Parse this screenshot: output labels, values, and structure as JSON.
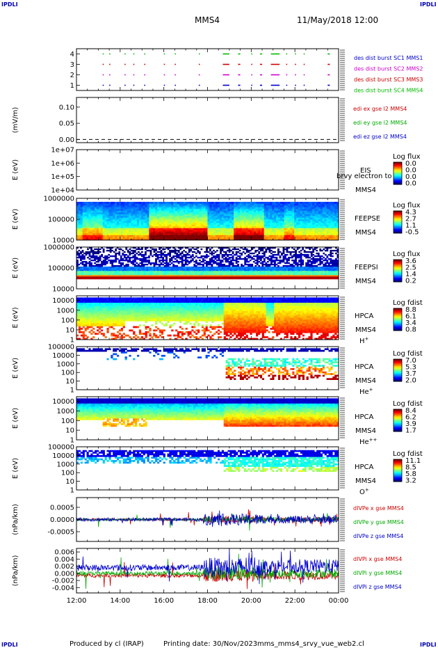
{
  "header": {
    "corner_labels": [
      "IPDLI",
      "IPDLI",
      "IPDLI",
      "IPDLI"
    ],
    "spacecraft": "MMS4",
    "datetime": "11/May/2018 12:00"
  },
  "footer": {
    "produced_by": "Produced by cl (IRAP)",
    "printing_date": "Printing date: 30/Nov/2023",
    "filename": "mms_mms4_srvy_vue_web2.cl"
  },
  "time_axis": {
    "labels": [
      "12:00",
      "14:00",
      "16:00",
      "18:00",
      "20:00",
      "22:00",
      "00:00"
    ],
    "start_hour": 12,
    "end_hour": 24
  },
  "chart_data": [
    {
      "id": "burst",
      "type": "scatter",
      "yticks": [
        "4",
        "3",
        "2",
        "1"
      ],
      "ylim": [
        0.5,
        4.5
      ],
      "legend": [
        {
          "text": "des dist burst SC1 MMS1",
          "color": "#0000cc"
        },
        {
          "text": "des dist burst SC2 MMS2",
          "color": "#cc00cc"
        },
        {
          "text": "des dist burst SC3 MMS3",
          "color": "#cc0000"
        },
        {
          "text": "des dist burst SC4 MMS4",
          "color": "#00bb00"
        }
      ],
      "series": [
        {
          "sc": 4,
          "color": "#00bb00",
          "intervals": [
            [
              13.2,
              13.25
            ],
            [
              13.5,
              13.55
            ],
            [
              14.2,
              14.25
            ],
            [
              14.6,
              14.65
            ],
            [
              15.1,
              15.15
            ],
            [
              16.0,
              16.05
            ],
            [
              16.5,
              16.55
            ],
            [
              17.6,
              17.65
            ],
            [
              18.7,
              19.0
            ],
            [
              19.4,
              19.5
            ],
            [
              20.0,
              20.05
            ],
            [
              20.4,
              20.5
            ],
            [
              20.9,
              21.3
            ],
            [
              21.6,
              21.65
            ],
            [
              22.0,
              22.05
            ],
            [
              22.4,
              22.45
            ],
            [
              23.5,
              23.6
            ]
          ]
        },
        {
          "sc": 3,
          "color": "#cc0000",
          "intervals": [
            [
              13.2,
              13.25
            ],
            [
              13.5,
              13.55
            ],
            [
              14.2,
              14.25
            ],
            [
              14.6,
              14.65
            ],
            [
              15.1,
              15.15
            ],
            [
              16.0,
              16.05
            ],
            [
              16.5,
              16.55
            ],
            [
              17.6,
              17.65
            ],
            [
              18.7,
              19.0
            ],
            [
              19.4,
              19.5
            ],
            [
              20.0,
              20.05
            ],
            [
              20.4,
              20.5
            ],
            [
              20.9,
              21.3
            ],
            [
              21.6,
              21.65
            ],
            [
              22.0,
              22.05
            ],
            [
              22.4,
              22.45
            ],
            [
              23.5,
              23.6
            ]
          ]
        },
        {
          "sc": 2,
          "color": "#cc00cc",
          "intervals": [
            [
              13.2,
              13.25
            ],
            [
              13.5,
              13.55
            ],
            [
              14.2,
              14.25
            ],
            [
              14.6,
              14.65
            ],
            [
              15.1,
              15.15
            ],
            [
              16.0,
              16.05
            ],
            [
              16.5,
              16.55
            ],
            [
              17.6,
              17.65
            ],
            [
              18.7,
              19.0
            ],
            [
              19.4,
              19.5
            ],
            [
              20.0,
              20.05
            ],
            [
              20.4,
              20.5
            ],
            [
              20.9,
              21.3
            ],
            [
              21.6,
              21.65
            ],
            [
              22.0,
              22.05
            ],
            [
              22.4,
              22.45
            ],
            [
              23.5,
              23.6
            ]
          ]
        },
        {
          "sc": 1,
          "color": "#0000cc",
          "intervals": [
            [
              13.2,
              13.25
            ],
            [
              13.5,
              13.55
            ],
            [
              14.2,
              14.25
            ],
            [
              14.6,
              14.65
            ],
            [
              15.1,
              15.15
            ],
            [
              16.0,
              16.05
            ],
            [
              16.5,
              16.55
            ],
            [
              17.6,
              17.65
            ],
            [
              18.7,
              19.0
            ],
            [
              19.4,
              19.5
            ],
            [
              20.0,
              20.05
            ],
            [
              20.4,
              20.5
            ],
            [
              20.9,
              21.3
            ],
            [
              21.6,
              21.65
            ],
            [
              22.0,
              22.05
            ],
            [
              22.4,
              22.45
            ],
            [
              23.5,
              23.6
            ]
          ]
        }
      ]
    },
    {
      "id": "edi",
      "type": "line",
      "ylabel": "(mV/m)",
      "yticks": [
        "0.10",
        "0.05",
        "0.00"
      ],
      "ytick_values": [
        0.1,
        0.05,
        0.0
      ],
      "ylim": [
        -0.01,
        0.13
      ],
      "legend": [
        {
          "text": "edi ex gse l2 MMS4",
          "color": "#cc0000"
        },
        {
          "text": "edi ey gse l2 MMS4",
          "color": "#00aa00"
        },
        {
          "text": "edi ez gse l2 MMS4",
          "color": "#0000cc"
        }
      ],
      "zero_line": 0.0
    },
    {
      "id": "eis",
      "type": "heatmap",
      "ylabel": "E (eV)",
      "yticks": [
        "1e+07",
        "1e+06",
        "1e+05",
        "1e+04"
      ],
      "ylim": [
        10000,
        10000000
      ],
      "log": true,
      "instrument": "EIS",
      "sc": "MMS4",
      "overlay_text": "brvy electron to",
      "colorbar": {
        "title": "Log flux",
        "labels": [
          "0.0",
          "0.0",
          "0.0",
          "0.0"
        ]
      },
      "empty": true
    },
    {
      "id": "feepse",
      "type": "heatmap",
      "ylabel": "E (eV)",
      "yticks": [
        "1000000",
        "100000",
        "10000"
      ],
      "ylim": [
        10000,
        1000000
      ],
      "log": true,
      "instrument": "FEEPSE",
      "sc": "MMS4",
      "colorbar": {
        "title": "Log flux",
        "labels": [
          "4.3",
          "2.7",
          "1.1",
          "-0.5"
        ]
      }
    },
    {
      "id": "feepsi",
      "type": "heatmap",
      "ylabel": "E (eV)",
      "yticks": [
        "1000000",
        "100000",
        "10000"
      ],
      "ylim": [
        10000,
        1000000
      ],
      "log": true,
      "instrument": "FEEPSI",
      "sc": "MMS4",
      "colorbar": {
        "title": "Log flux",
        "labels": [
          "3.6",
          "2.5",
          "1.4",
          "0.2"
        ]
      }
    },
    {
      "id": "hpca_h",
      "type": "heatmap",
      "ylabel": "E (eV)",
      "yticks": [
        "10000",
        "1000",
        "100",
        "10",
        "1"
      ],
      "ylim": [
        1,
        30000
      ],
      "log": true,
      "instrument": "HPCA",
      "sc": "MMS4",
      "species": "H",
      "charge": "+",
      "colorbar": {
        "title": "Log fdist",
        "labels": [
          "8.8",
          "6.1",
          "3.4",
          "0.8"
        ]
      }
    },
    {
      "id": "hpca_he",
      "type": "heatmap",
      "ylabel": "E (eV)",
      "yticks": [
        "100000",
        "10000",
        "1000",
        "100",
        "10",
        "1"
      ],
      "ylim": [
        1,
        100000
      ],
      "log": true,
      "instrument": "HPCA",
      "sc": "MMS4",
      "species": "He",
      "charge": "+",
      "colorbar": {
        "title": "Log fdist",
        "labels": [
          "7.0",
          "5.3",
          "3.7",
          "2.0"
        ]
      }
    },
    {
      "id": "hpca_hepp",
      "type": "heatmap",
      "ylabel": "E (eV)",
      "yticks": [
        "10000",
        "1000",
        "100",
        "10",
        "1"
      ],
      "ylim": [
        1,
        30000
      ],
      "log": true,
      "instrument": "HPCA",
      "sc": "MMS4",
      "species": "He",
      "charge": "++",
      "colorbar": {
        "title": "Log fdist",
        "labels": [
          "8.4",
          "6.2",
          "3.9",
          "1.7"
        ]
      }
    },
    {
      "id": "hpca_o",
      "type": "heatmap",
      "ylabel": "E (eV)",
      "yticks": [
        "100000",
        "10000",
        "1000",
        "100",
        "10",
        "1"
      ],
      "ylim": [
        1,
        100000
      ],
      "log": true,
      "instrument": "HPCA",
      "sc": "MMS4",
      "species": "O",
      "charge": "+",
      "colorbar": {
        "title": "Log fdist",
        "labels": [
          "11.1",
          "8.5",
          "5.8",
          "3.2"
        ]
      }
    },
    {
      "id": "divpe",
      "type": "line",
      "ylabel": "(nPa/km)",
      "yticks": [
        "0.0005",
        "0.0000",
        "-0.0005"
      ],
      "ytick_values": [
        0.0005,
        0.0,
        -0.0005
      ],
      "ylim": [
        -0.0009,
        0.0009
      ],
      "legend": [
        {
          "text": "dIVPe x gse MMS4",
          "color": "#cc0000"
        },
        {
          "text": "dIVPe y gse MMS4",
          "color": "#00aa00"
        },
        {
          "text": "dIVPe z gse MMS4",
          "color": "#0000cc"
        }
      ]
    },
    {
      "id": "divpi",
      "type": "line",
      "ylabel": "(nPa/km)",
      "yticks": [
        "0.006",
        "0.004",
        "0.002",
        "0.000",
        "-0.002",
        "-0.004"
      ],
      "ytick_values": [
        0.006,
        0.004,
        0.002,
        0.0,
        -0.002,
        -0.004
      ],
      "ylim": [
        -0.0055,
        0.007
      ],
      "legend": [
        {
          "text": "dIVPi x gse MMS4",
          "color": "#cc0000"
        },
        {
          "text": "dIVPi y gse MMS4",
          "color": "#00aa00"
        },
        {
          "text": "dIVPi z gse MMS4",
          "color": "#0000cc"
        }
      ]
    }
  ]
}
